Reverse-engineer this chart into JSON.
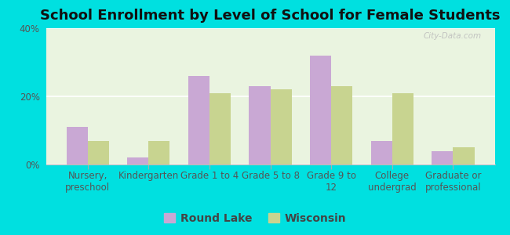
{
  "title": "School Enrollment by Level of School for Female Students",
  "categories": [
    "Nursery,\npreschool",
    "Kindergarten",
    "Grade 1 to 4",
    "Grade 5 to 8",
    "Grade 9 to\n12",
    "College\nundergrad",
    "Graduate or\nprofessional"
  ],
  "round_lake": [
    11,
    2,
    26,
    23,
    32,
    7,
    4
  ],
  "wisconsin": [
    7,
    7,
    21,
    22,
    23,
    21,
    5
  ],
  "bar_color_rl": "#c9a8d4",
  "bar_color_wi": "#c8d490",
  "background_color": "#00e0e0",
  "plot_bg_color": "#eaf4e0",
  "ylim": [
    0,
    40
  ],
  "yticks": [
    0,
    20,
    40
  ],
  "ytick_labels": [
    "0%",
    "20%",
    "40%"
  ],
  "legend_labels": [
    "Round Lake",
    "Wisconsin"
  ],
  "watermark": "City-Data.com",
  "title_fontsize": 13,
  "tick_fontsize": 8.5,
  "legend_fontsize": 10
}
